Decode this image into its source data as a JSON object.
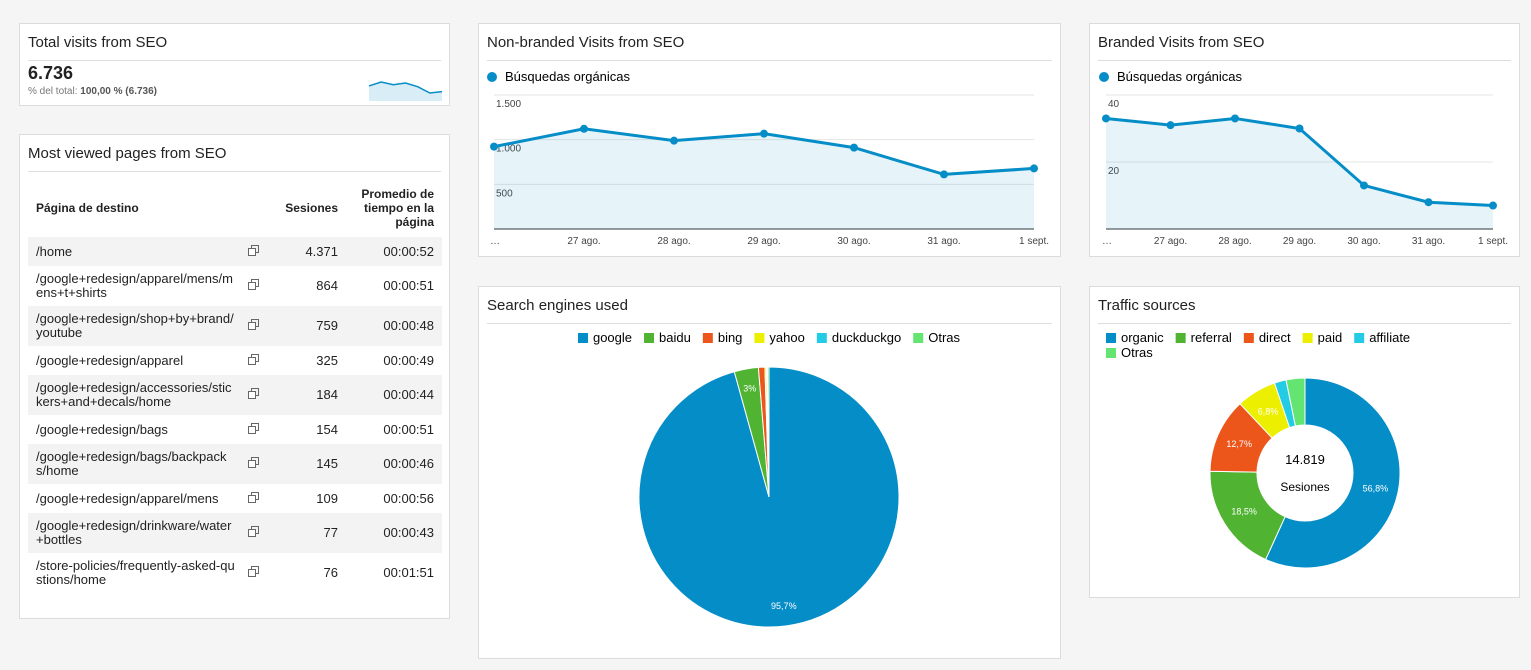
{
  "summary": {
    "title": "Total visits from SEO",
    "value": "6.736",
    "share_label": "% del total:",
    "share_value": "100,00 % (6.736)"
  },
  "table": {
    "title": "Most viewed pages from SEO",
    "columns": [
      "Página de destino",
      "Sesiones",
      "Promedio de tiempo en la página"
    ],
    "rows": [
      [
        "/home",
        "4.371",
        "00:00:52"
      ],
      [
        "/google+redesign/apparel/mens/mens+t+shirts",
        "864",
        "00:00:51"
      ],
      [
        "/google+redesign/shop+by+brand/youtube",
        "759",
        "00:00:48"
      ],
      [
        "/google+redesign/apparel",
        "325",
        "00:00:49"
      ],
      [
        "/google+redesign/accessories/stickers+and+decals/home",
        "184",
        "00:00:44"
      ],
      [
        "/google+redesign/bags",
        "154",
        "00:00:51"
      ],
      [
        "/google+redesign/bags/backpacks/home",
        "145",
        "00:00:46"
      ],
      [
        "/google+redesign/apparel/mens",
        "109",
        "00:00:56"
      ],
      [
        "/google+redesign/drinkware/water+bottles",
        "77",
        "00:00:43"
      ],
      [
        "/store-policies/frequently-asked-qustions/home",
        "76",
        "00:01:51"
      ]
    ]
  },
  "chart_data": [
    {
      "type": "sparkline",
      "color": "#058dc7",
      "values": [
        960,
        1150,
        1020,
        1100,
        925,
        620,
        685
      ]
    },
    {
      "type": "line",
      "title": "Non-branded Visits from SEO",
      "categories": [
        "…",
        "27 ago.",
        "28 ago.",
        "29 ago.",
        "30 ago.",
        "31 ago.",
        "1 sept."
      ],
      "series": [
        {
          "name": "Búsquedas orgánicas",
          "color": "#058dc7",
          "values": [
            922,
            1122,
            989,
            1067,
            911,
            611,
            678
          ]
        }
      ],
      "ylim": [
        0,
        1500
      ],
      "yticks": [
        500,
        {
          "value": 1000,
          "label": "1.000"
        },
        {
          "value": 1500,
          "label": "1.500"
        }
      ],
      "grid": true
    },
    {
      "type": "line",
      "title": "Branded Visits from SEO",
      "categories": [
        "…",
        "27 ago.",
        "28 ago.",
        "29 ago.",
        "30 ago.",
        "31 ago.",
        "1 sept."
      ],
      "series": [
        {
          "name": "Búsquedas orgánicas",
          "color": "#058dc7",
          "values": [
            33,
            31,
            33,
            30,
            13,
            8,
            7
          ]
        }
      ],
      "ylim": [
        0,
        40
      ],
      "yticks": [
        20,
        40
      ],
      "grid": true
    },
    {
      "type": "pie",
      "title": "Search engines used",
      "categories": [
        "google",
        "baidu",
        "bing",
        "yahoo",
        "duckduckgo",
        "Otras"
      ],
      "values": [
        95.7,
        3,
        0.8,
        0.2,
        0.1,
        0.2
      ],
      "value_labels": [
        "95,7%",
        "3%",
        null,
        null,
        null,
        null
      ],
      "colors": [
        "#058dc7",
        "#50b432",
        "#ed561b",
        "#edef00",
        "#24cbe5",
        "#64e572"
      ],
      "legend": "top"
    },
    {
      "type": "donut",
      "title": "Traffic sources",
      "categories": [
        "organic",
        "referral",
        "direct",
        "paid",
        "affiliate",
        "Otras"
      ],
      "values": [
        56.8,
        18.5,
        12.7,
        6.8,
        2.0,
        3.2
      ],
      "value_labels": [
        "56,8%",
        "18,5%",
        "12,7%",
        "6,8%",
        null,
        null
      ],
      "colors": [
        "#058dc7",
        "#50b432",
        "#ed561b",
        "#edef00",
        "#24cbe5",
        "#64e572"
      ],
      "center_value": "14.819",
      "center_label": "Sesiones",
      "legend": "top-left"
    }
  ]
}
